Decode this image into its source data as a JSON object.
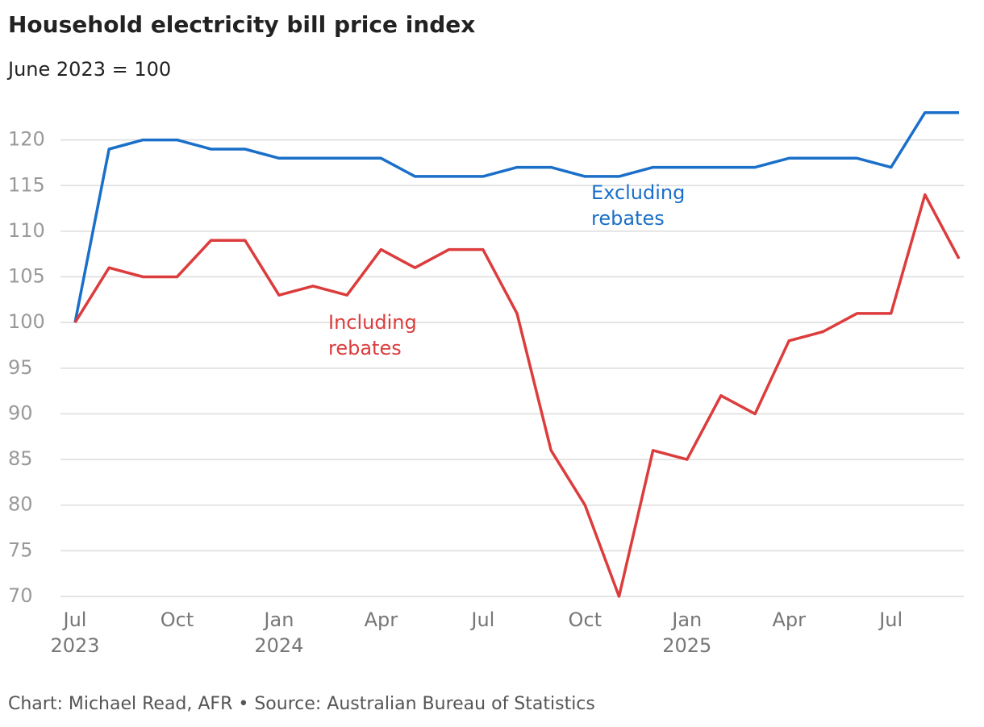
{
  "chart_data": {
    "type": "line",
    "title": "Household electricity bill price index",
    "subtitle": "June 2023 = 100",
    "source": "Chart: Michael Read, AFR • Source: Australian Bureau of Statistics",
    "categories": [
      "Jul 2023",
      null,
      null,
      "Oct",
      null,
      null,
      "Jan 2024",
      null,
      null,
      "Apr",
      null,
      null,
      "Jul",
      null,
      null,
      "Oct",
      null,
      null,
      "Jan 2025",
      null,
      null,
      "Apr",
      null,
      null,
      "Jul",
      null,
      null
    ],
    "series": [
      {
        "name": "Excluding rebates",
        "color": "#1a6fc9",
        "values": [
          100,
          119,
          120,
          120,
          119,
          119,
          118,
          118,
          118,
          118,
          116,
          116,
          116,
          117,
          117,
          116,
          116,
          117,
          117,
          117,
          117,
          118,
          118,
          118,
          117,
          123,
          123
        ]
      },
      {
        "name": "Including rebates",
        "color": "#dc3c3c",
        "values": [
          100,
          106,
          105,
          105,
          109,
          109,
          103,
          104,
          103,
          108,
          106,
          108,
          108,
          101,
          86,
          80,
          70,
          86,
          85,
          92,
          90,
          98,
          99,
          101,
          101,
          114,
          107
        ]
      }
    ],
    "ylim": [
      70,
      125
    ],
    "yticks": [
      70,
      75,
      80,
      85,
      90,
      95,
      100,
      105,
      110,
      115,
      120
    ],
    "grid": true
  }
}
